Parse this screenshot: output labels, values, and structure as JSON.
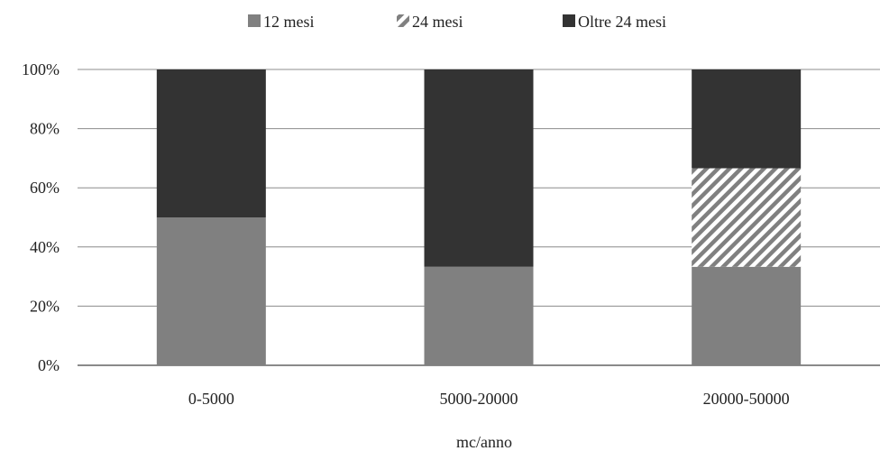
{
  "chart_data": {
    "type": "bar",
    "stacked": true,
    "percent": true,
    "categories": [
      "0-5000",
      "5000-20000",
      "20000-50000"
    ],
    "series": [
      {
        "name": "12 mesi",
        "values": [
          50,
          33.3,
          33.3
        ],
        "color": "#808080",
        "pattern": "solid"
      },
      {
        "name": "24 mesi",
        "values": [
          0,
          0,
          33.3
        ],
        "color": "#808080",
        "pattern": "diagonal-stripes"
      },
      {
        "name": "Oltre 24 mesi",
        "values": [
          50,
          66.7,
          33.4
        ],
        "color": "#333333",
        "pattern": "solid"
      }
    ],
    "title": "",
    "xlabel": "mc/anno",
    "ylabel": "",
    "ylim": [
      0,
      100
    ],
    "yticks": [
      "0%",
      "20%",
      "40%",
      "60%",
      "80%",
      "100%"
    ],
    "grid": "horizontal",
    "legend_position": "top"
  }
}
